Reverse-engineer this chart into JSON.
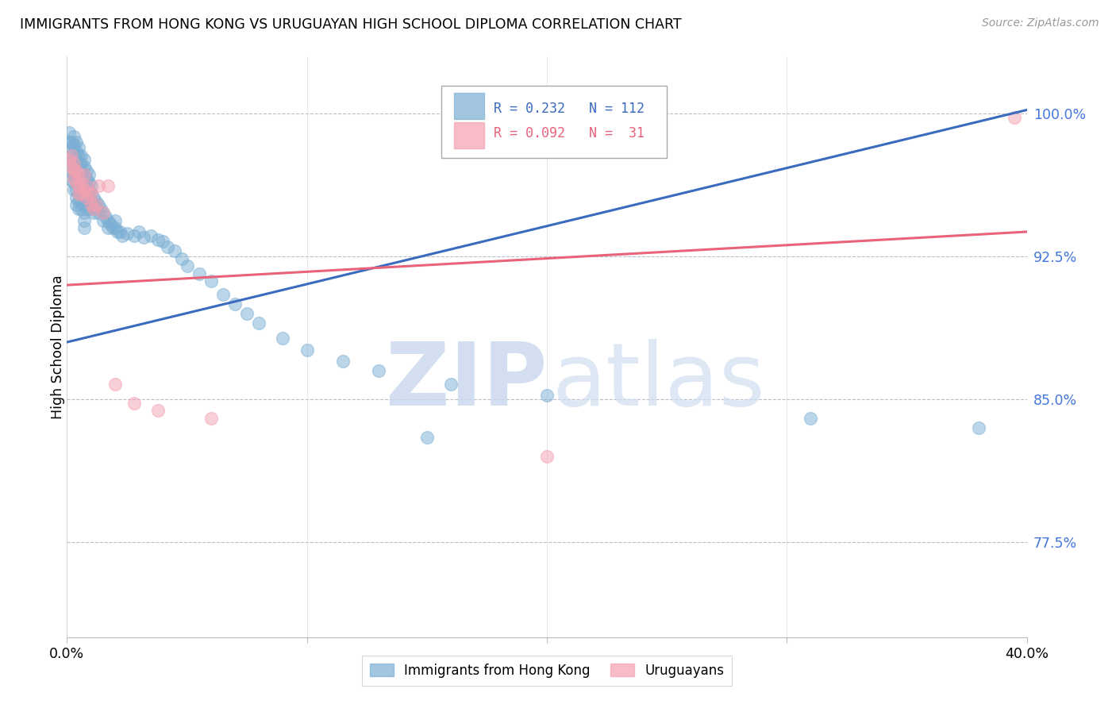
{
  "title": "IMMIGRANTS FROM HONG KONG VS URUGUAYAN HIGH SCHOOL DIPLOMA CORRELATION CHART",
  "source": "Source: ZipAtlas.com",
  "ylabel": "High School Diploma",
  "ytick_values": [
    0.775,
    0.85,
    0.925,
    1.0
  ],
  "ytick_labels": [
    "77.5%",
    "85.0%",
    "92.5%",
    "100.0%"
  ],
  "xlim": [
    0.0,
    0.4
  ],
  "ylim": [
    0.725,
    1.03
  ],
  "blue_color": "#7BAFD4",
  "pink_color": "#F4A0B0",
  "line_blue": "#3B6BBE",
  "line_pink": "#E8637A",
  "legend_text_blue": "R = 0.232   N = 112",
  "legend_text_pink": "R = 0.092   N =  31",
  "watermark_zip": "ZIP",
  "watermark_atlas": "atlas",
  "blue_x": [
    0.001,
    0.001,
    0.002,
    0.002,
    0.002,
    0.002,
    0.002,
    0.002,
    0.003,
    0.003,
    0.003,
    0.003,
    0.003,
    0.003,
    0.003,
    0.003,
    0.004,
    0.004,
    0.004,
    0.004,
    0.004,
    0.004,
    0.004,
    0.004,
    0.004,
    0.005,
    0.005,
    0.005,
    0.005,
    0.005,
    0.005,
    0.005,
    0.005,
    0.005,
    0.006,
    0.006,
    0.006,
    0.006,
    0.006,
    0.006,
    0.006,
    0.006,
    0.007,
    0.007,
    0.007,
    0.007,
    0.007,
    0.007,
    0.007,
    0.007,
    0.007,
    0.007,
    0.008,
    0.008,
    0.008,
    0.008,
    0.008,
    0.008,
    0.009,
    0.009,
    0.009,
    0.009,
    0.009,
    0.01,
    0.01,
    0.01,
    0.01,
    0.011,
    0.011,
    0.011,
    0.012,
    0.012,
    0.013,
    0.013,
    0.014,
    0.015,
    0.015,
    0.016,
    0.017,
    0.017,
    0.018,
    0.019,
    0.02,
    0.02,
    0.021,
    0.022,
    0.023,
    0.025,
    0.028,
    0.03,
    0.032,
    0.035,
    0.038,
    0.04,
    0.042,
    0.045,
    0.048,
    0.05,
    0.055,
    0.06,
    0.065,
    0.07,
    0.075,
    0.08,
    0.09,
    0.1,
    0.115,
    0.13,
    0.16,
    0.2,
    0.31,
    0.38,
    0.15
  ],
  "blue_y": [
    0.99,
    0.985,
    0.985,
    0.982,
    0.978,
    0.975,
    0.97,
    0.965,
    0.988,
    0.984,
    0.98,
    0.976,
    0.972,
    0.968,
    0.964,
    0.96,
    0.985,
    0.98,
    0.976,
    0.972,
    0.968,
    0.964,
    0.96,
    0.956,
    0.952,
    0.982,
    0.978,
    0.974,
    0.97,
    0.966,
    0.962,
    0.958,
    0.954,
    0.95,
    0.978,
    0.974,
    0.97,
    0.966,
    0.962,
    0.958,
    0.954,
    0.95,
    0.976,
    0.972,
    0.968,
    0.964,
    0.96,
    0.956,
    0.952,
    0.948,
    0.944,
    0.94,
    0.97,
    0.966,
    0.962,
    0.958,
    0.954,
    0.95,
    0.968,
    0.964,
    0.96,
    0.956,
    0.952,
    0.962,
    0.958,
    0.954,
    0.95,
    0.956,
    0.952,
    0.948,
    0.954,
    0.95,
    0.952,
    0.948,
    0.95,
    0.948,
    0.944,
    0.946,
    0.944,
    0.94,
    0.942,
    0.94,
    0.944,
    0.94,
    0.938,
    0.938,
    0.936,
    0.937,
    0.936,
    0.938,
    0.935,
    0.936,
    0.934,
    0.933,
    0.93,
    0.928,
    0.924,
    0.92,
    0.916,
    0.912,
    0.905,
    0.9,
    0.895,
    0.89,
    0.882,
    0.876,
    0.87,
    0.865,
    0.858,
    0.852,
    0.84,
    0.835,
    0.83
  ],
  "pink_x": [
    0.001,
    0.002,
    0.002,
    0.003,
    0.003,
    0.003,
    0.004,
    0.004,
    0.005,
    0.005,
    0.005,
    0.006,
    0.006,
    0.007,
    0.007,
    0.008,
    0.008,
    0.009,
    0.01,
    0.01,
    0.011,
    0.012,
    0.013,
    0.015,
    0.017,
    0.02,
    0.028,
    0.038,
    0.06,
    0.2,
    0.395
  ],
  "pink_y": [
    0.976,
    0.978,
    0.972,
    0.974,
    0.97,
    0.966,
    0.97,
    0.964,
    0.968,
    0.962,
    0.958,
    0.964,
    0.958,
    0.968,
    0.96,
    0.962,
    0.956,
    0.958,
    0.958,
    0.952,
    0.95,
    0.952,
    0.962,
    0.948,
    0.962,
    0.858,
    0.848,
    0.844,
    0.84,
    0.82,
    0.998
  ]
}
